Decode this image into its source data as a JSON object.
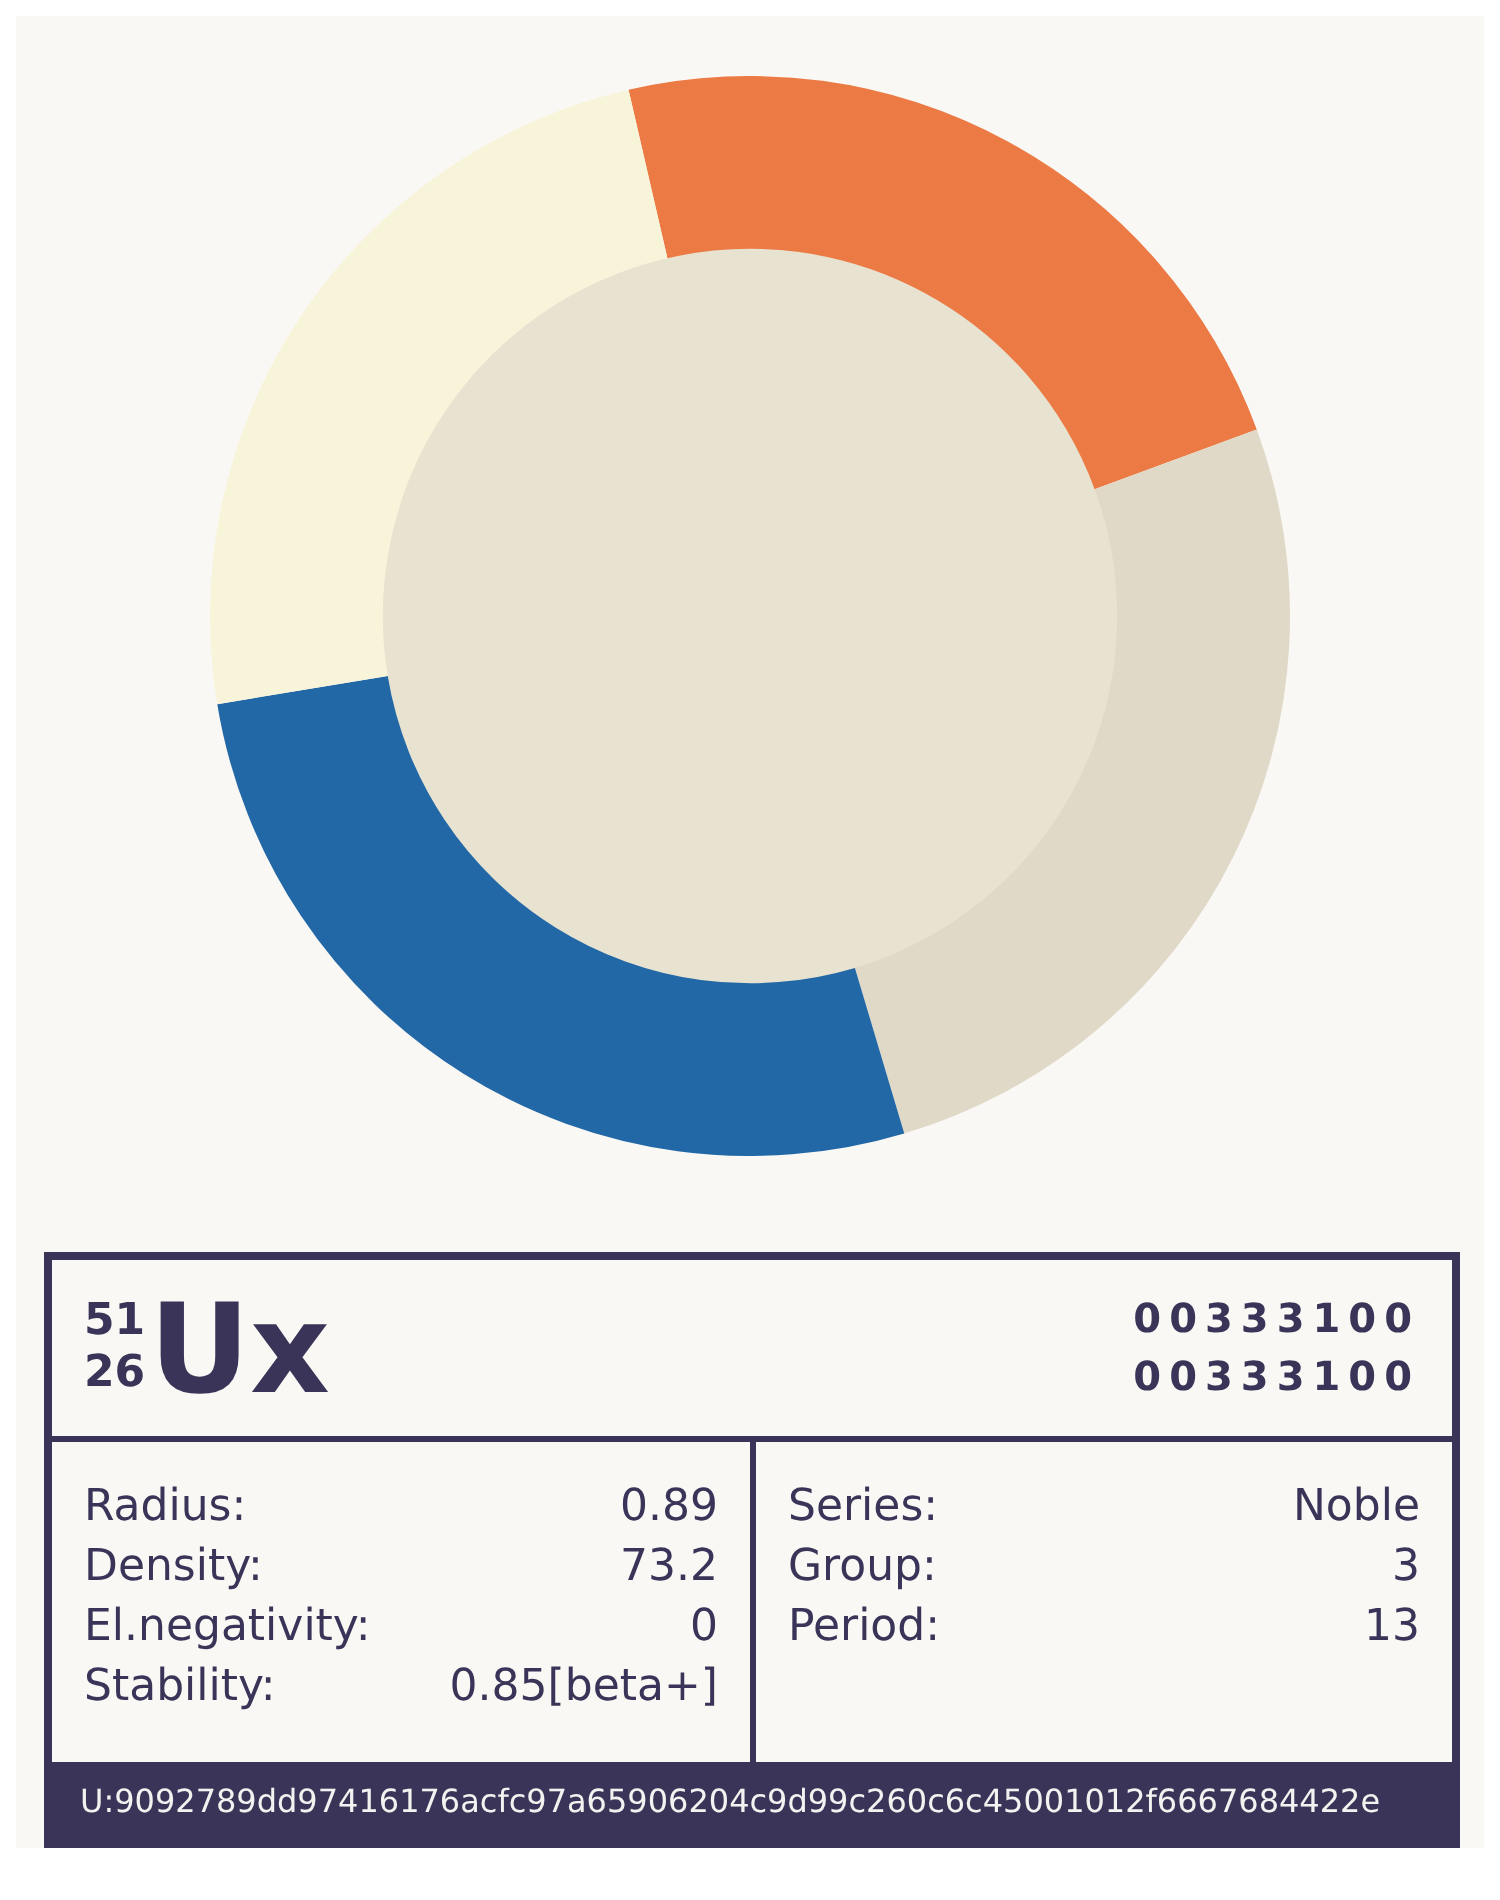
{
  "chart_data": [
    {
      "type": "donut",
      "categories": [
        null,
        null,
        null,
        null
      ],
      "values": [
        23,
        26,
        27,
        24
      ],
      "colors": [
        "#ec7a44",
        "#e0d9c8",
        "#2368a6",
        "#f8f4da"
      ],
      "legend": false
    },
    {
      "type": "other",
      "title": "Ux",
      "annotations": [
        "51",
        "26",
        "00333100",
        "00333100",
        "Radius:",
        "0.89",
        "Density:",
        "73.2",
        "El.negativity:",
        "0",
        "Stability:",
        "0.85[beta+]",
        "Series:",
        "Noble",
        "Group:",
        "3",
        "Period:",
        "13",
        "U:9092789dd97416176acfc97a65906204c9d99c260c6c45001012f6667684422e"
      ]
    }
  ]
}
